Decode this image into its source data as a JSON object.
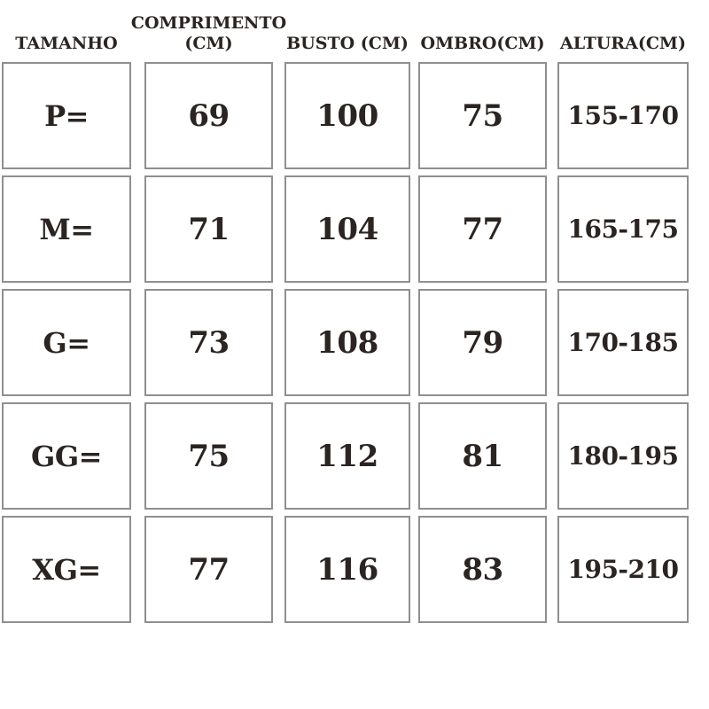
{
  "colors": {
    "text": "#2b2420",
    "cell_border": "#8f8f8f",
    "cell_background": "#ffffff",
    "page_background": "#ffffff"
  },
  "chart_data": {
    "type": "table",
    "columns": [
      "TAMANHO",
      "COMPRIMENTO (CM)",
      "BUSTO (CM)",
      "OMBRO(CM)",
      "ALTURA(CM)"
    ],
    "rows": [
      [
        "P=",
        "69",
        "100",
        "75",
        "155-170"
      ],
      [
        "M=",
        "71",
        "104",
        "77",
        "165-175"
      ],
      [
        "G=",
        "73",
        "108",
        "79",
        "170-185"
      ],
      [
        "GG=",
        "75",
        "112",
        "81",
        "180-195"
      ],
      [
        "XG=",
        "77",
        "116",
        "83",
        "195-210"
      ]
    ],
    "layout": {
      "grid": "separated-cells",
      "header_position": "top",
      "rows_count": 5,
      "columns_count": 5
    }
  }
}
